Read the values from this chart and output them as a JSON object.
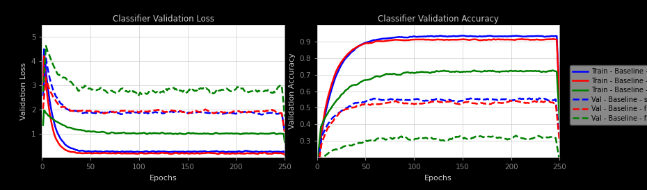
{
  "title_loss": "Classifier Validation Loss",
  "title_acc": "Classifier Validation Accuracy",
  "xlabel": "Epochs",
  "ylabel_loss": "Validation Loss",
  "ylabel_acc": "Validation Accuracy",
  "n_epochs": 250,
  "legend_labels": [
    "Train - Baseline - scratch",
    "Train - Baseline - finetune",
    "Train - Baseline - frozen",
    "Val - Baseline - scratch",
    "Val - Baseline - finetune",
    "Val - Baseline - frozen"
  ],
  "background_color": "#000000",
  "axes_bg": "#ffffff",
  "grid_color": "#cccccc",
  "text_color": "#cccccc",
  "title_color": "#cccccc",
  "tick_color": "#888888",
  "legend_bg": "#888888",
  "loss_ylim": [
    0,
    5.5
  ],
  "loss_yticks": [
    1,
    2,
    3,
    4,
    5
  ],
  "acc_ylim": [
    0.2,
    1.0
  ],
  "acc_yticks": [
    0.3,
    0.4,
    0.5,
    0.6,
    0.7,
    0.8,
    0.9
  ],
  "xticks": [
    0,
    50,
    100,
    150,
    200,
    250
  ]
}
